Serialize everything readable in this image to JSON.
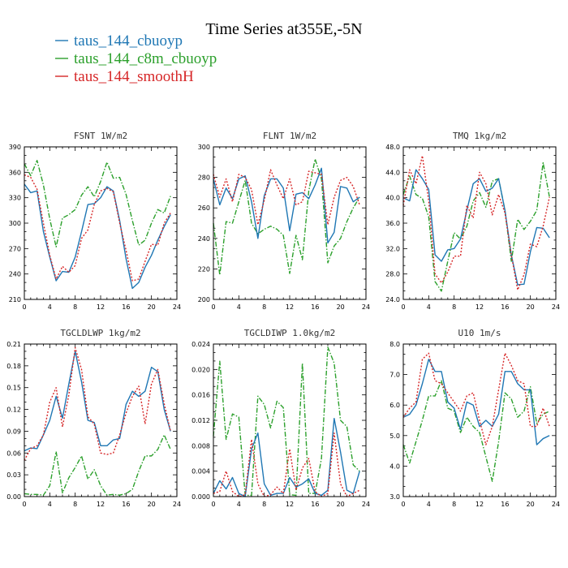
{
  "title": "Time Series at355E,-5N",
  "legend": [
    {
      "name": "taus_144_cbuoyp",
      "color": "#1f77b4",
      "dash": "solid"
    },
    {
      "name": "taus_144_c8m_cbuoyp",
      "color": "#2ca02c",
      "dash": "dashdot"
    },
    {
      "name": "taus_144_smoothH",
      "color": "#d62728",
      "dash": "dotted"
    }
  ],
  "chart_data": [
    {
      "type": "line",
      "title": "FSNT 1W/m2",
      "xlim": [
        0,
        24
      ],
      "xticks": [
        "0",
        "4",
        "8",
        "12",
        "16",
        "20",
        "24"
      ],
      "ylim": [
        210,
        390
      ],
      "yticks": [
        "210",
        "240",
        "270",
        "300",
        "330",
        "360",
        "390"
      ],
      "x": [
        0,
        1,
        2,
        3,
        4,
        5,
        6,
        7,
        8,
        9,
        10,
        11,
        12,
        13,
        14,
        15,
        16,
        17,
        18,
        19,
        20,
        21,
        22,
        23
      ],
      "series": [
        {
          "name": "taus_144_cbuoyp",
          "values": [
            346,
            336,
            338,
            290,
            260,
            232,
            243,
            242,
            260,
            290,
            322,
            323,
            330,
            343,
            338,
            303,
            258,
            223,
            230,
            248,
            262,
            280,
            296,
            310
          ]
        },
        {
          "name": "taus_144_c8m_cbuoyp",
          "values": [
            370,
            356,
            374,
            345,
            305,
            272,
            306,
            310,
            316,
            333,
            343,
            331,
            349,
            372,
            353,
            354,
            334,
            303,
            274,
            280,
            300,
            316,
            312,
            332
          ]
        },
        {
          "name": "taus_144_smoothH",
          "values": [
            357,
            354,
            340,
            300,
            262,
            234,
            249,
            242,
            250,
            282,
            292,
            322,
            338,
            341,
            337,
            300,
            268,
            232,
            234,
            255,
            275,
            274,
            300,
            312
          ]
        }
      ]
    },
    {
      "type": "line",
      "title": "FLNT 1W/m2",
      "xlim": [
        0,
        24
      ],
      "xticks": [
        "0",
        "4",
        "8",
        "12",
        "16",
        "20",
        "24"
      ],
      "ylim": [
        200,
        300
      ],
      "yticks": [
        "200",
        "220",
        "240",
        "260",
        "280",
        "300"
      ],
      "x": [
        0,
        1,
        2,
        3,
        4,
        5,
        6,
        7,
        8,
        9,
        10,
        11,
        12,
        13,
        14,
        15,
        16,
        17,
        18,
        19,
        20,
        21,
        22,
        23
      ],
      "series": [
        {
          "name": "taus_144_cbuoyp",
          "values": [
            279,
            262,
            273,
            266,
            279,
            281,
            264,
            240,
            268,
            279,
            279,
            273,
            245,
            269,
            270,
            266,
            275,
            286,
            237,
            244,
            274,
            273,
            264,
            267
          ]
        },
        {
          "name": "taus_144_c8m_cbuoyp",
          "values": [
            250,
            216,
            251,
            250,
            264,
            278,
            250,
            243,
            246,
            248,
            246,
            242,
            217,
            242,
            226,
            271,
            292,
            279,
            224,
            235,
            240,
            251,
            260,
            267
          ]
        },
        {
          "name": "taus_144_smoothH",
          "values": [
            282,
            267,
            279,
            264,
            282,
            280,
            272,
            249,
            265,
            285,
            275,
            266,
            279,
            262,
            264,
            284,
            283,
            282,
            249,
            267,
            278,
            280,
            274,
            262
          ]
        }
      ]
    },
    {
      "type": "line",
      "title": "TMQ 1kg/m2",
      "xlim": [
        0,
        24
      ],
      "xticks": [
        "0",
        "4",
        "8",
        "12",
        "16",
        "20",
        "24"
      ],
      "ylim": [
        24.0,
        48.0
      ],
      "yticks": [
        "24.0",
        "28.0",
        "32.0",
        "36.0",
        "40.0",
        "44.0",
        "48.0"
      ],
      "x": [
        0,
        1,
        2,
        3,
        4,
        5,
        6,
        7,
        8,
        9,
        10,
        11,
        12,
        13,
        14,
        15,
        16,
        17,
        18,
        19,
        20,
        21,
        22,
        23
      ],
      "series": [
        {
          "name": "taus_144_cbuoyp",
          "values": [
            40.0,
            39.5,
            44.4,
            43.0,
            41.3,
            31.0,
            30.0,
            31.8,
            32.0,
            33.5,
            38.0,
            42.2,
            43.0,
            41.0,
            41.5,
            43.0,
            38.0,
            31.0,
            26.3,
            26.4,
            31.5,
            35.3,
            35.2,
            33.7
          ]
        },
        {
          "name": "taus_144_c8m_cbuoyp",
          "values": [
            40.5,
            43.4,
            40.5,
            39.9,
            37.0,
            26.8,
            25.3,
            30.0,
            34.5,
            33.5,
            35.5,
            39.5,
            40.8,
            38.5,
            42.6,
            43.0,
            38.0,
            30.0,
            36.6,
            35.0,
            36.3,
            38.0,
            45.5,
            40.1
          ]
        },
        {
          "name": "taus_144_smoothH",
          "values": [
            38.8,
            44.4,
            42.2,
            46.6,
            39.5,
            28.0,
            26.6,
            28.3,
            30.8,
            30.8,
            38.8,
            36.8,
            44.0,
            42.2,
            37.3,
            40.5,
            37.6,
            31.0,
            25.5,
            27.9,
            32.7,
            32.3,
            35.5,
            40.1
          ]
        }
      ]
    },
    {
      "type": "line",
      "title": "TGCLDLWP 1kg/m2",
      "xlim": [
        0,
        24
      ],
      "xticks": [
        "0",
        "4",
        "8",
        "12",
        "16",
        "20",
        "24"
      ],
      "ylim": [
        0,
        0.21
      ],
      "yticks": [
        "0.00",
        "0.03",
        "0.06",
        "0.09",
        "0.12",
        "0.15",
        "0.18",
        "0.21"
      ],
      "x": [
        0,
        1,
        2,
        3,
        4,
        5,
        6,
        7,
        8,
        9,
        10,
        11,
        12,
        13,
        14,
        15,
        16,
        17,
        18,
        19,
        20,
        21,
        22,
        23
      ],
      "series": [
        {
          "name": "taus_144_cbuoyp",
          "values": [
            0.063,
            0.067,
            0.066,
            0.085,
            0.105,
            0.138,
            0.108,
            0.155,
            0.2,
            0.158,
            0.105,
            0.102,
            0.07,
            0.07,
            0.078,
            0.08,
            0.127,
            0.145,
            0.138,
            0.145,
            0.178,
            0.172,
            0.12,
            0.09
          ]
        },
        {
          "name": "taus_144_c8m_cbuoyp",
          "values": [
            0.004,
            0.003,
            0.003,
            0.002,
            0.015,
            0.062,
            0.005,
            0.026,
            0.04,
            0.056,
            0.024,
            0.037,
            0.015,
            0.002,
            0.003,
            0.002,
            0.004,
            0.01,
            0.035,
            0.056,
            0.056,
            0.065,
            0.085,
            0.065
          ]
        },
        {
          "name": "taus_144_smoothH",
          "values": [
            0.05,
            0.066,
            0.07,
            0.085,
            0.13,
            0.15,
            0.096,
            0.14,
            0.205,
            0.175,
            0.11,
            0.1,
            0.06,
            0.058,
            0.06,
            0.085,
            0.115,
            0.138,
            0.152,
            0.1,
            0.155,
            0.175,
            0.128,
            0.09
          ]
        }
      ]
    },
    {
      "type": "line",
      "title": "TGCLDIWP 1.0kg/m2",
      "xlim": [
        0,
        24
      ],
      "xticks": [
        "0",
        "4",
        "8",
        "12",
        "16",
        "20",
        "24"
      ],
      "ylim": [
        0,
        0.024
      ],
      "yticks": [
        "0.000",
        "0.004",
        "0.008",
        "0.012",
        "0.016",
        "0.020",
        "0.024"
      ],
      "x": [
        0,
        1,
        2,
        3,
        4,
        5,
        6,
        7,
        8,
        9,
        10,
        11,
        12,
        13,
        14,
        15,
        16,
        17,
        18,
        19,
        20,
        21,
        22,
        23
      ],
      "series": [
        {
          "name": "taus_144_cbuoyp",
          "values": [
            0.0005,
            0.0025,
            0.0012,
            0.003,
            0.0005,
            0.0,
            0.0075,
            0.01,
            0.002,
            0.0002,
            0.0005,
            0.0005,
            0.003,
            0.0015,
            0.002,
            0.0028,
            0.0005,
            0.0002,
            0.001,
            0.0123,
            0.007,
            0.001,
            0.0005,
            0.004
          ]
        },
        {
          "name": "taus_144_c8m_cbuoyp",
          "values": [
            0.0095,
            0.0213,
            0.009,
            0.013,
            0.0125,
            0.0002,
            0.0002,
            0.0158,
            0.0145,
            0.0108,
            0.015,
            0.014,
            0.0003,
            0.0002,
            0.021,
            0.0005,
            0.0005,
            0.006,
            0.0235,
            0.021,
            0.012,
            0.011,
            0.005,
            0.004
          ]
        },
        {
          "name": "taus_144_smoothH",
          "values": [
            0.0005,
            0.0008,
            0.004,
            0.0008,
            0.0,
            0.0003,
            0.009,
            0.002,
            0.0,
            0.0003,
            0.0015,
            0.0005,
            0.0075,
            0.001,
            0.0045,
            0.006,
            0.0008,
            0.0,
            0.0005,
            0.01,
            0.002,
            0.0,
            0.0005,
            0.001
          ]
        }
      ]
    },
    {
      "type": "line",
      "title": "U10 1m/s",
      "xlim": [
        0,
        24
      ],
      "xticks": [
        "0",
        "4",
        "8",
        "12",
        "16",
        "20",
        "24"
      ],
      "ylim": [
        3.0,
        8.0
      ],
      "yticks": [
        "3.0",
        "4.0",
        "5.0",
        "6.0",
        "7.0",
        "8.0"
      ],
      "x": [
        0,
        1,
        2,
        3,
        4,
        5,
        6,
        7,
        8,
        9,
        10,
        11,
        12,
        13,
        14,
        15,
        16,
        17,
        18,
        19,
        20,
        21,
        22,
        23
      ],
      "series": [
        {
          "name": "taus_144_cbuoyp",
          "values": [
            5.6,
            5.7,
            6.0,
            6.7,
            7.5,
            7.1,
            7.1,
            6.1,
            5.9,
            5.2,
            6.1,
            6.0,
            5.3,
            5.5,
            5.3,
            5.7,
            7.1,
            7.1,
            6.7,
            6.5,
            6.5,
            4.7,
            4.9,
            5.0
          ]
        },
        {
          "name": "taus_144_c8m_cbuoyp",
          "values": [
            4.7,
            4.1,
            4.8,
            5.5,
            6.3,
            6.3,
            6.8,
            5.9,
            5.8,
            5.1,
            5.6,
            5.3,
            5.1,
            4.3,
            3.5,
            4.8,
            6.4,
            6.2,
            5.6,
            5.8,
            6.6,
            5.4,
            5.7,
            5.8
          ]
        },
        {
          "name": "taus_144_smoothH",
          "values": [
            5.6,
            5.9,
            6.1,
            7.5,
            7.7,
            6.8,
            6.7,
            6.4,
            6.1,
            5.8,
            6.3,
            6.4,
            5.5,
            4.7,
            5.3,
            6.5,
            7.7,
            7.3,
            6.8,
            6.7,
            5.3,
            5.3,
            5.9,
            5.3
          ]
        }
      ]
    }
  ]
}
